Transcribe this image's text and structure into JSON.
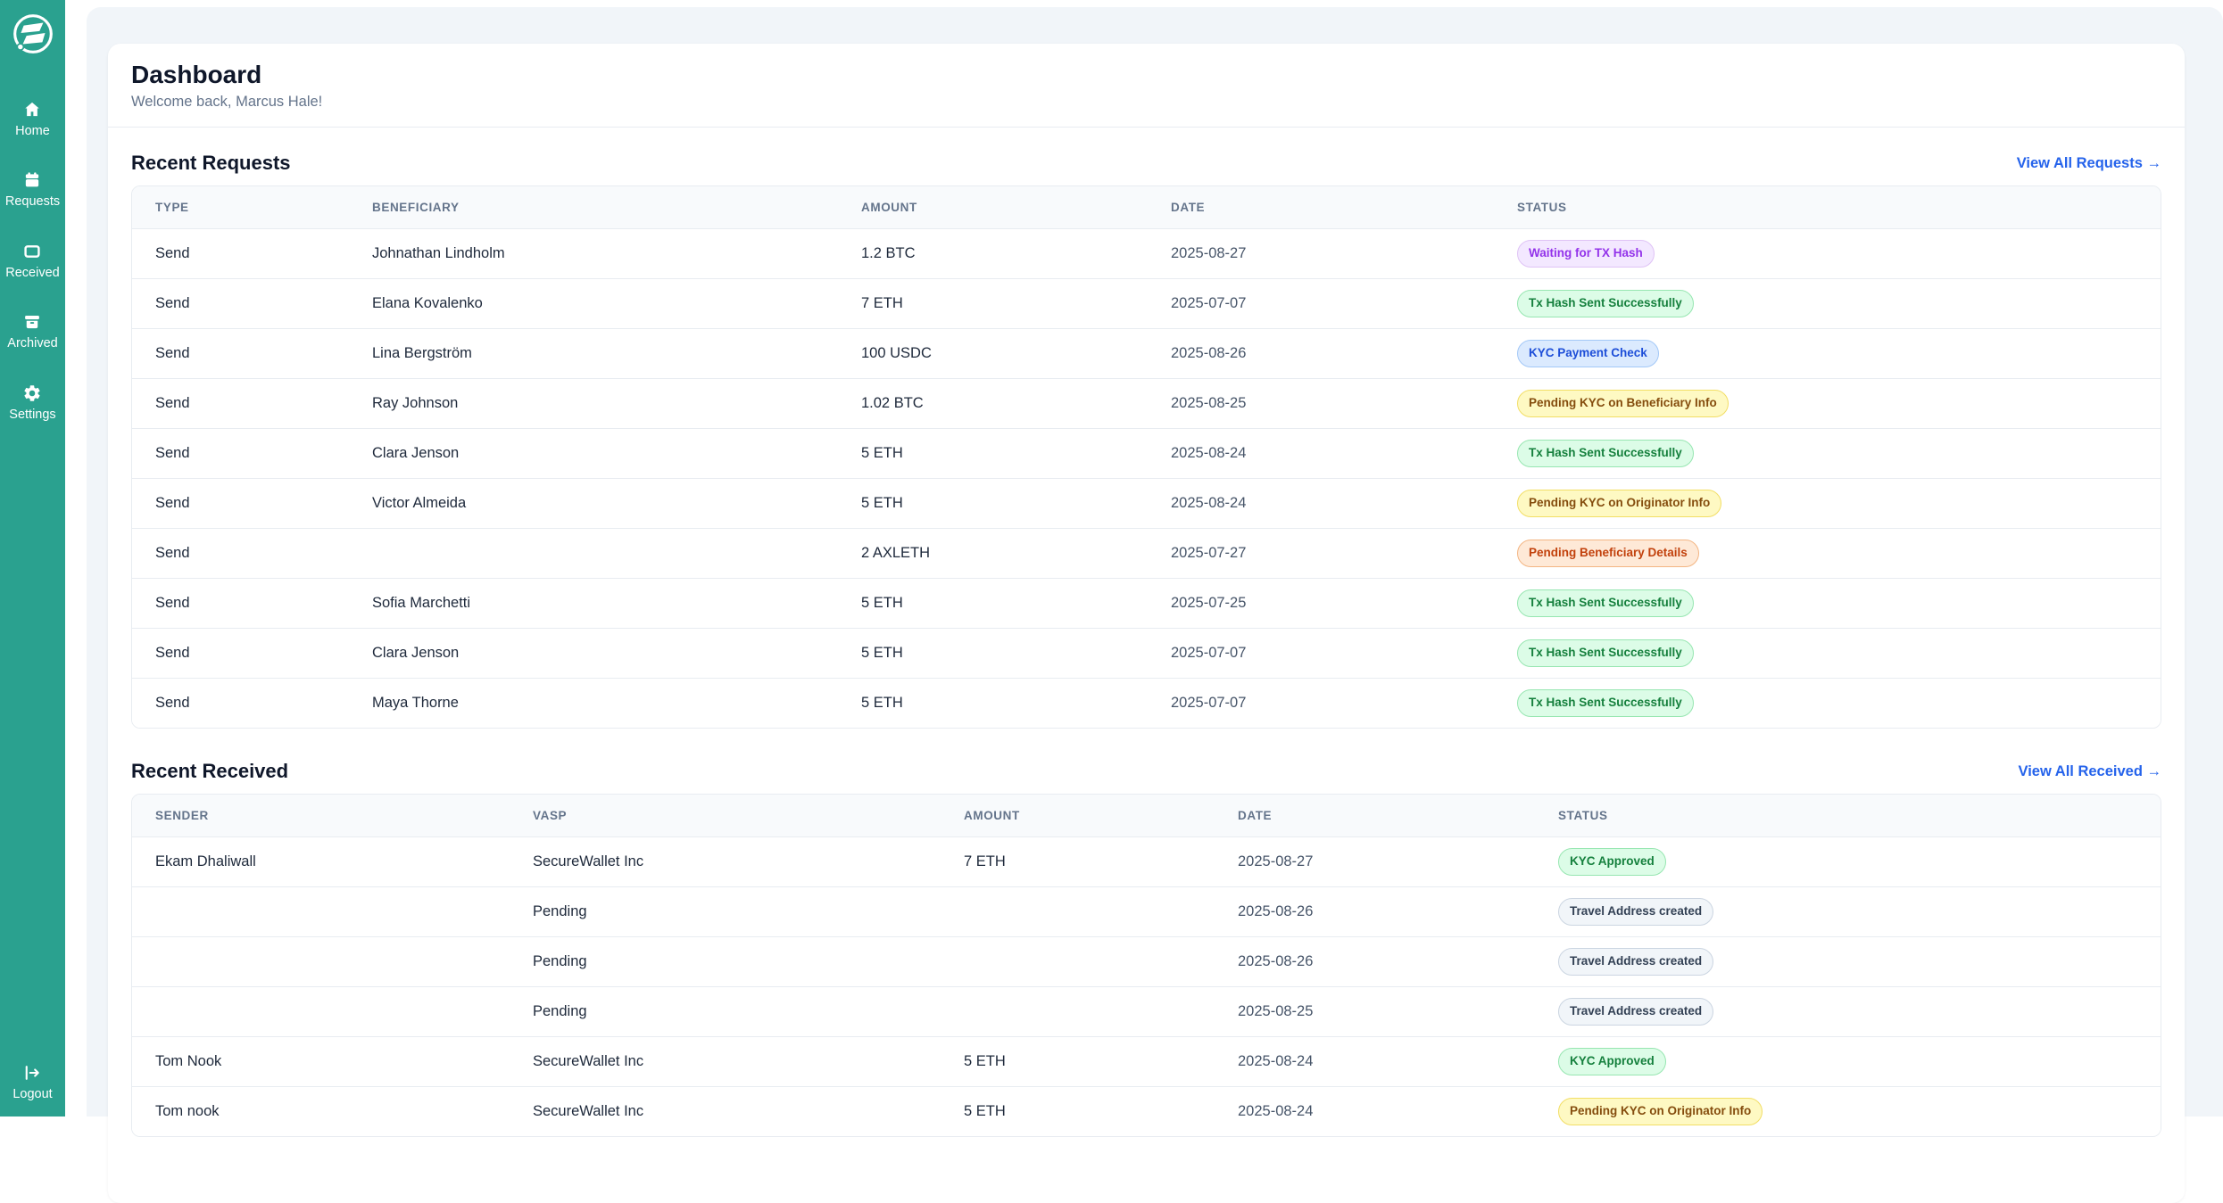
{
  "colors": {
    "sidebar-bg": "#2AA18F",
    "page-bg": "#FFFFFF",
    "panel-bg": "#F1F5F9",
    "card-bg": "#FFFFFF",
    "thead-bg": "#F8FAFC",
    "border": "#E8ECF1",
    "heading": "#0F172A",
    "muted": "#64748B",
    "cell": "#1E293B",
    "date": "#475569",
    "link": "#2563EB"
  },
  "sidebar": {
    "items": [
      {
        "id": "home",
        "label": "Home",
        "icon": "home-icon"
      },
      {
        "id": "requests",
        "label": "Requests",
        "icon": "requests-icon"
      },
      {
        "id": "received",
        "label": "Received",
        "icon": "received-icon"
      },
      {
        "id": "archived",
        "label": "Archived",
        "icon": "archived-icon"
      },
      {
        "id": "settings",
        "label": "Settings",
        "icon": "settings-icon"
      }
    ],
    "logout": {
      "id": "logout",
      "label": "Logout",
      "icon": "logout-icon"
    }
  },
  "header": {
    "title": "Dashboard",
    "subtitle": "Welcome back, Marcus Hale!"
  },
  "requests": {
    "title": "Recent Requests",
    "view_all": "View All Requests →",
    "columns": [
      "TYPE",
      "BENEFICIARY",
      "AMOUNT",
      "DATE",
      "STATUS"
    ],
    "rows": [
      {
        "cells": [
          "Send",
          "Johnathan Lindholm",
          "1.2 BTC",
          "2025-08-27"
        ],
        "status": {
          "label": "Waiting for TX Hash",
          "kind": "purple"
        }
      },
      {
        "cells": [
          "Send",
          "Elana Kovalenko",
          "7 ETH",
          "2025-07-07"
        ],
        "status": {
          "label": "Tx Hash Sent Successfully",
          "kind": "green"
        }
      },
      {
        "cells": [
          "Send",
          "Lina Bergström",
          "100 USDC",
          "2025-08-26"
        ],
        "status": {
          "label": "KYC Payment Check",
          "kind": "blue"
        }
      },
      {
        "cells": [
          "Send",
          "Ray Johnson",
          "1.02 BTC",
          "2025-08-25"
        ],
        "status": {
          "label": "Pending KYC on Beneficiary Info",
          "kind": "yellow"
        }
      },
      {
        "cells": [
          "Send",
          "Clara Jenson",
          "5 ETH",
          "2025-08-24"
        ],
        "status": {
          "label": "Tx Hash Sent Successfully",
          "kind": "green"
        }
      },
      {
        "cells": [
          "Send",
          "Victor Almeida",
          "5 ETH",
          "2025-08-24"
        ],
        "status": {
          "label": "Pending KYC on Originator Info",
          "kind": "yellow"
        }
      },
      {
        "cells": [
          "Send",
          "",
          "2 AXLETH",
          "2025-07-27"
        ],
        "status": {
          "label": "Pending Beneficiary Details",
          "kind": "orange"
        }
      },
      {
        "cells": [
          "Send",
          "Sofia Marchetti",
          "5 ETH",
          "2025-07-25"
        ],
        "status": {
          "label": "Tx Hash Sent Successfully",
          "kind": "green"
        }
      },
      {
        "cells": [
          "Send",
          "Clara Jenson",
          "5 ETH",
          "2025-07-07"
        ],
        "status": {
          "label": "Tx Hash Sent Successfully",
          "kind": "green"
        }
      },
      {
        "cells": [
          "Send",
          "Maya Thorne",
          "5 ETH",
          "2025-07-07"
        ],
        "status": {
          "label": "Tx Hash Sent Successfully",
          "kind": "green"
        }
      }
    ]
  },
  "received": {
    "title": "Recent Received",
    "view_all": "View All Received →",
    "columns": [
      "SENDER",
      "VASP",
      "AMOUNT",
      "DATE",
      "STATUS"
    ],
    "rows": [
      {
        "cells": [
          "Ekam Dhaliwall",
          "SecureWallet Inc",
          "7 ETH",
          "2025-08-27"
        ],
        "status": {
          "label": "KYC Approved",
          "kind": "green"
        }
      },
      {
        "cells": [
          "",
          "Pending",
          "",
          "2025-08-26"
        ],
        "status": {
          "label": "Travel Address created",
          "kind": "gray"
        }
      },
      {
        "cells": [
          "",
          "Pending",
          "",
          "2025-08-26"
        ],
        "status": {
          "label": "Travel Address created",
          "kind": "gray"
        }
      },
      {
        "cells": [
          "",
          "Pending",
          "",
          "2025-08-25"
        ],
        "status": {
          "label": "Travel Address created",
          "kind": "gray"
        }
      },
      {
        "cells": [
          "Tom Nook",
          "SecureWallet Inc",
          "5 ETH",
          "2025-08-24"
        ],
        "status": {
          "label": "KYC Approved",
          "kind": "green"
        }
      },
      {
        "cells": [
          "Tom nook",
          "SecureWallet Inc",
          "5 ETH",
          "2025-08-24"
        ],
        "status": {
          "label": "Pending KYC on Originator Info",
          "kind": "yellow"
        }
      }
    ]
  },
  "status_styles": {
    "purple": {
      "bg": "#F3E8FF",
      "border": "#DFC3F5",
      "text": "#9333EA"
    },
    "green": {
      "bg": "#DCFCE7",
      "border": "#97E6B1",
      "text": "#15803D"
    },
    "blue": {
      "bg": "#DBEAFE",
      "border": "#A3C8F7",
      "text": "#1D4ED8"
    },
    "yellow": {
      "bg": "#FEF9C3",
      "border": "#F2DE66",
      "text": "#854D0E"
    },
    "orange": {
      "bg": "#FEE9D7",
      "border": "#F3B583",
      "text": "#C2410C"
    },
    "gray": {
      "bg": "#F1F5F9",
      "border": "#CBD5E1",
      "text": "#334155"
    }
  }
}
